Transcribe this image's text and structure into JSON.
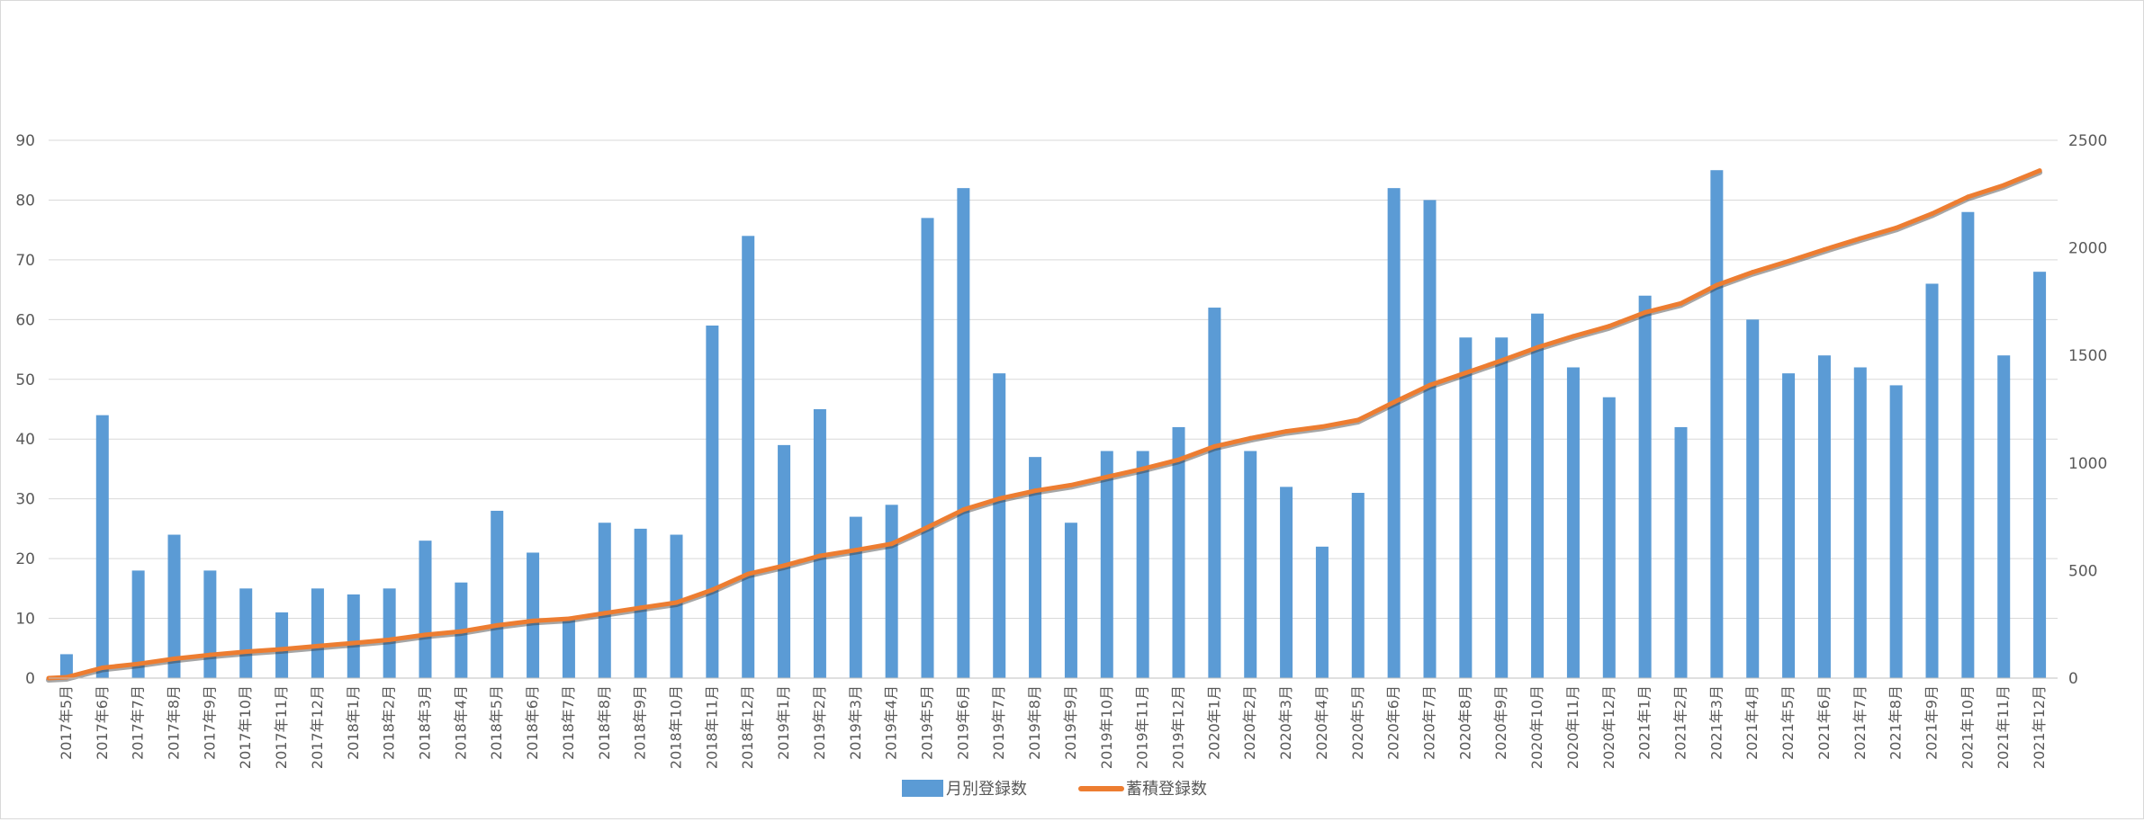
{
  "chart_data": {
    "type": "bar",
    "title": "",
    "categories": [
      "2017年5月",
      "2017年6月",
      "2017年7月",
      "2017年8月",
      "2017年9月",
      "2017年10月",
      "2017年11月",
      "2017年12月",
      "2018年1月",
      "2018年2月",
      "2018年3月",
      "2018年4月",
      "2018年5月",
      "2018年6月",
      "2018年7月",
      "2018年8月",
      "2018年9月",
      "2018年10月",
      "2018年11月",
      "2018年12月",
      "2019年1月",
      "2019年2月",
      "2019年3月",
      "2019年4月",
      "2019年5月",
      "2019年6月",
      "2019年7月",
      "2019年8月",
      "2019年9月",
      "2019年10月",
      "2019年11月",
      "2019年12月",
      "2020年1月",
      "2020年2月",
      "2020年3月",
      "2020年4月",
      "2020年5月",
      "2020年6月",
      "2020年7月",
      "2020年8月",
      "2020年9月",
      "2020年10月",
      "2020年11月",
      "2020年12月",
      "2021年1月",
      "2021年2月",
      "2021年3月",
      "2021年4月",
      "2021年5月",
      "2021年6月",
      "2021年7月",
      "2021年8月",
      "2021年9月",
      "2021年10月",
      "2021年11月",
      "2021年12月"
    ],
    "series": [
      {
        "name": "月別登録数",
        "type": "bar",
        "axis": "left",
        "color": "#5b9bd5",
        "values": [
          4,
          44,
          18,
          24,
          18,
          15,
          11,
          15,
          14,
          15,
          23,
          16,
          28,
          21,
          10,
          26,
          25,
          24,
          59,
          74,
          39,
          45,
          27,
          29,
          77,
          82,
          51,
          37,
          26,
          38,
          38,
          42,
          62,
          38,
          32,
          22,
          31,
          82,
          80,
          57,
          57,
          61,
          52,
          47,
          64,
          42,
          85,
          60,
          51,
          54,
          52,
          49,
          66,
          78,
          54,
          68
        ]
      },
      {
        "name": "蓄積登録数",
        "type": "line",
        "axis": "right",
        "color": "#ed7d31",
        "values": [
          4,
          48,
          66,
          90,
          108,
          123,
          134,
          149,
          163,
          178,
          201,
          217,
          245,
          266,
          276,
          302,
          327,
          351,
          410,
          484,
          523,
          568,
          595,
          624,
          701,
          783,
          834,
          871,
          897,
          935,
          973,
          1015,
          1077,
          1115,
          1147,
          1169,
          1200,
          1282,
          1362,
          1419,
          1476,
          1537,
          1589,
          1636,
          1700,
          1742,
          1827,
          1887,
          1938,
          1992,
          2044,
          2093,
          2159,
          2237,
          2291,
          2359
        ]
      }
    ],
    "y_left": {
      "min": 0,
      "max": 90,
      "step": 10
    },
    "y_right": {
      "min": 0,
      "max": 2500,
      "step": 500
    },
    "grid": true,
    "legend_position": "bottom"
  }
}
